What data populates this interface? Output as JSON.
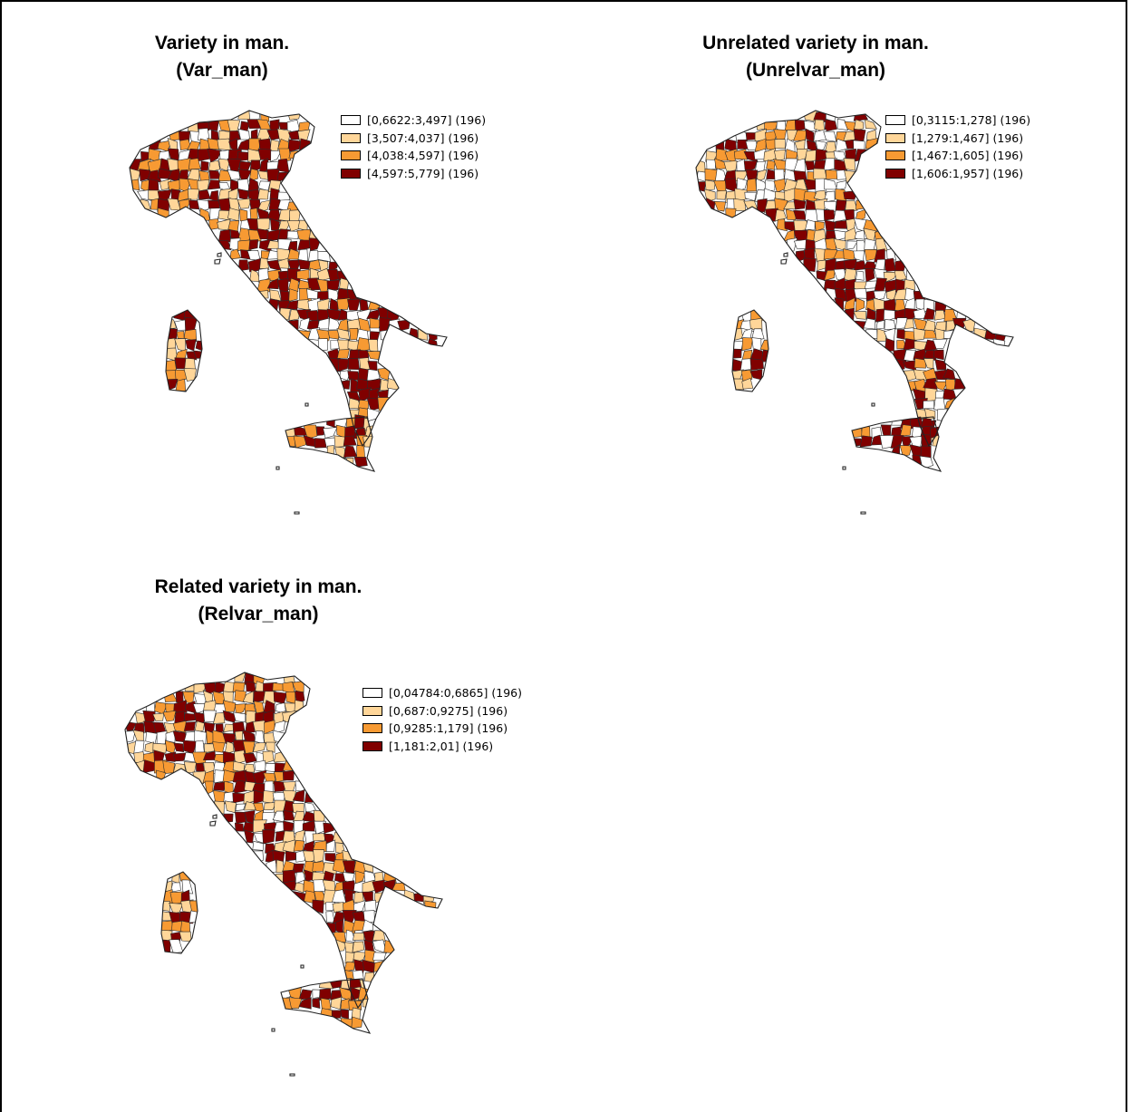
{
  "colors": {
    "class1": "#ffffff",
    "class2": "#ffd699",
    "class3": "#f79a33",
    "class4": "#800000"
  },
  "panels": [
    {
      "id": "var_man",
      "title_line1": "Variety in man.",
      "title_line2": "(Var_man)",
      "legend": [
        {
          "label": "[0,6622:3,497] (196)",
          "color_class": "class1"
        },
        {
          "label": "[3,507:4,037] (196)",
          "color_class": "class2"
        },
        {
          "label": "[4,038:4,597] (196)",
          "color_class": "class3"
        },
        {
          "label": "[4,597:5,779] (196)",
          "color_class": "class4"
        }
      ],
      "class_weights": [
        0.12,
        0.22,
        0.26,
        0.4
      ]
    },
    {
      "id": "unrelvar_man",
      "title_line1": "Unrelated variety in man.",
      "title_line2": "(Unrelvar_man)",
      "legend": [
        {
          "label": "[0,3115:1,278] (196)",
          "color_class": "class1"
        },
        {
          "label": "[1,279:1,467] (196)",
          "color_class": "class2"
        },
        {
          "label": "[1,467:1,605] (196)",
          "color_class": "class3"
        },
        {
          "label": "[1,606:1,957] (196)",
          "color_class": "class4"
        }
      ],
      "class_weights": [
        0.25,
        0.25,
        0.22,
        0.28
      ]
    },
    {
      "id": "relvar_man",
      "title_line1": "Related variety in man.",
      "title_line2": "(Relvar_man)",
      "legend": [
        {
          "label": "[0,04784:0,6865] (196)",
          "color_class": "class1"
        },
        {
          "label": "[0,687:0,9275] (196)",
          "color_class": "class2"
        },
        {
          "label": "[0,9285:1,179] (196)",
          "color_class": "class3"
        },
        {
          "label": "[1,181:2,01] (196)",
          "color_class": "class4"
        }
      ],
      "class_weights": [
        0.18,
        0.27,
        0.22,
        0.33
      ]
    }
  ]
}
